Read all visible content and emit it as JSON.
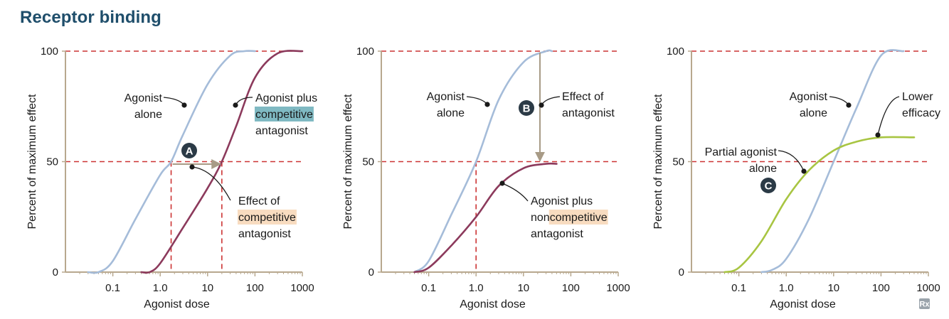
{
  "title": "Receptor binding",
  "colors": {
    "agonist": "#a5bcd9",
    "antagonist": "#8c3a5c",
    "partial": "#a8c542",
    "reference": "#cc3333",
    "axis": "#b8a88e",
    "arrow": "#a89b86",
    "badge": "#2b3a46",
    "highlight_blue": "#7fb9c2",
    "highlight_peach": "#f8dcc0"
  },
  "chart_data": [
    {
      "type": "line",
      "xscale": "log",
      "xlabel": "Agonist dose",
      "ylabel": "Percent of maximum effect",
      "xticks": [
        "0.1",
        "1.0",
        "10",
        "100",
        "1000"
      ],
      "yticks": [
        "0",
        "50",
        "100"
      ],
      "ylim": [
        0,
        100
      ],
      "reference_lines": {
        "y": [
          100,
          50
        ],
        "x_dashed": [
          1.7,
          20
        ]
      },
      "series": [
        {
          "x": [
            0.03,
            0.05,
            0.1,
            0.3,
            1,
            1.7,
            3,
            10,
            30,
            60,
            100
          ],
          "y": [
            0,
            0,
            5,
            24,
            44,
            50,
            62,
            85,
            98,
            100,
            100
          ]
        },
        {
          "x": [
            0.4,
            0.6,
            1,
            3,
            10,
            20,
            40,
            100,
            300,
            1000
          ],
          "y": [
            0,
            0,
            4,
            20,
            38,
            50,
            66,
            88,
            99,
            100
          ]
        }
      ],
      "annotations": [
        {
          "badge": "A"
        },
        {
          "text": [
            "Agonist",
            "alone"
          ]
        },
        {
          "text": [
            "Agonist plus",
            "competitive",
            "antagonist"
          ],
          "highlight": "competitive"
        },
        {
          "text": [
            "Effect of",
            "competitive",
            "antagonist"
          ],
          "highlight": "competitive"
        }
      ]
    },
    {
      "type": "line",
      "xscale": "log",
      "xlabel": "Agonist dose",
      "ylabel": "Percent of maximum effect",
      "xticks": [
        "0.1",
        "1.0",
        "10",
        "100",
        "1000"
      ],
      "yticks": [
        "0",
        "50",
        "100"
      ],
      "ylim": [
        0,
        100
      ],
      "reference_lines": {
        "y": [
          100,
          50
        ],
        "x_dashed": [
          1.0
        ]
      },
      "series": [
        {
          "x": [
            0.05,
            0.1,
            0.3,
            1,
            3,
            10,
            30,
            40
          ],
          "y": [
            0,
            5,
            26,
            50,
            78,
            95,
            100,
            100
          ]
        },
        {
          "x": [
            0.05,
            0.1,
            0.3,
            1,
            3,
            10,
            30,
            50
          ],
          "y": [
            0,
            2,
            12,
            25,
            39,
            47,
            49,
            49
          ]
        }
      ],
      "annotations": [
        {
          "badge": "B"
        },
        {
          "text": [
            "Agonist",
            "alone"
          ]
        },
        {
          "text": [
            "Effect of",
            "antagonist"
          ]
        },
        {
          "text": [
            "Agonist plus",
            "noncompetitive",
            "antagonist"
          ],
          "highlight": "competitive"
        }
      ]
    },
    {
      "type": "line",
      "xscale": "log",
      "xlabel": "Agonist dose",
      "ylabel": "Percent of maximum effect",
      "xticks": [
        "0.1",
        "1.0",
        "10",
        "100",
        "1000"
      ],
      "yticks": [
        "0",
        "50",
        "100"
      ],
      "ylim": [
        0,
        100
      ],
      "reference_lines": {
        "y": [
          100,
          50
        ]
      },
      "series": [
        {
          "x": [
            0.3,
            0.5,
            1,
            3,
            10,
            30,
            100,
            300
          ],
          "y": [
            0,
            1,
            6,
            24,
            50,
            74,
            98,
            100
          ]
        },
        {
          "x": [
            0.05,
            0.1,
            0.3,
            1,
            3,
            10,
            30,
            100,
            500
          ],
          "y": [
            0,
            2,
            14,
            33,
            46,
            55,
            59,
            61,
            61
          ]
        }
      ],
      "annotations": [
        {
          "badge": "C"
        },
        {
          "text": [
            "Agonist",
            "alone"
          ]
        },
        {
          "text": [
            "Lower",
            "efficacy"
          ]
        },
        {
          "text": [
            "Partial agonist",
            "alone"
          ]
        }
      ]
    }
  ],
  "watermark": "Rx"
}
